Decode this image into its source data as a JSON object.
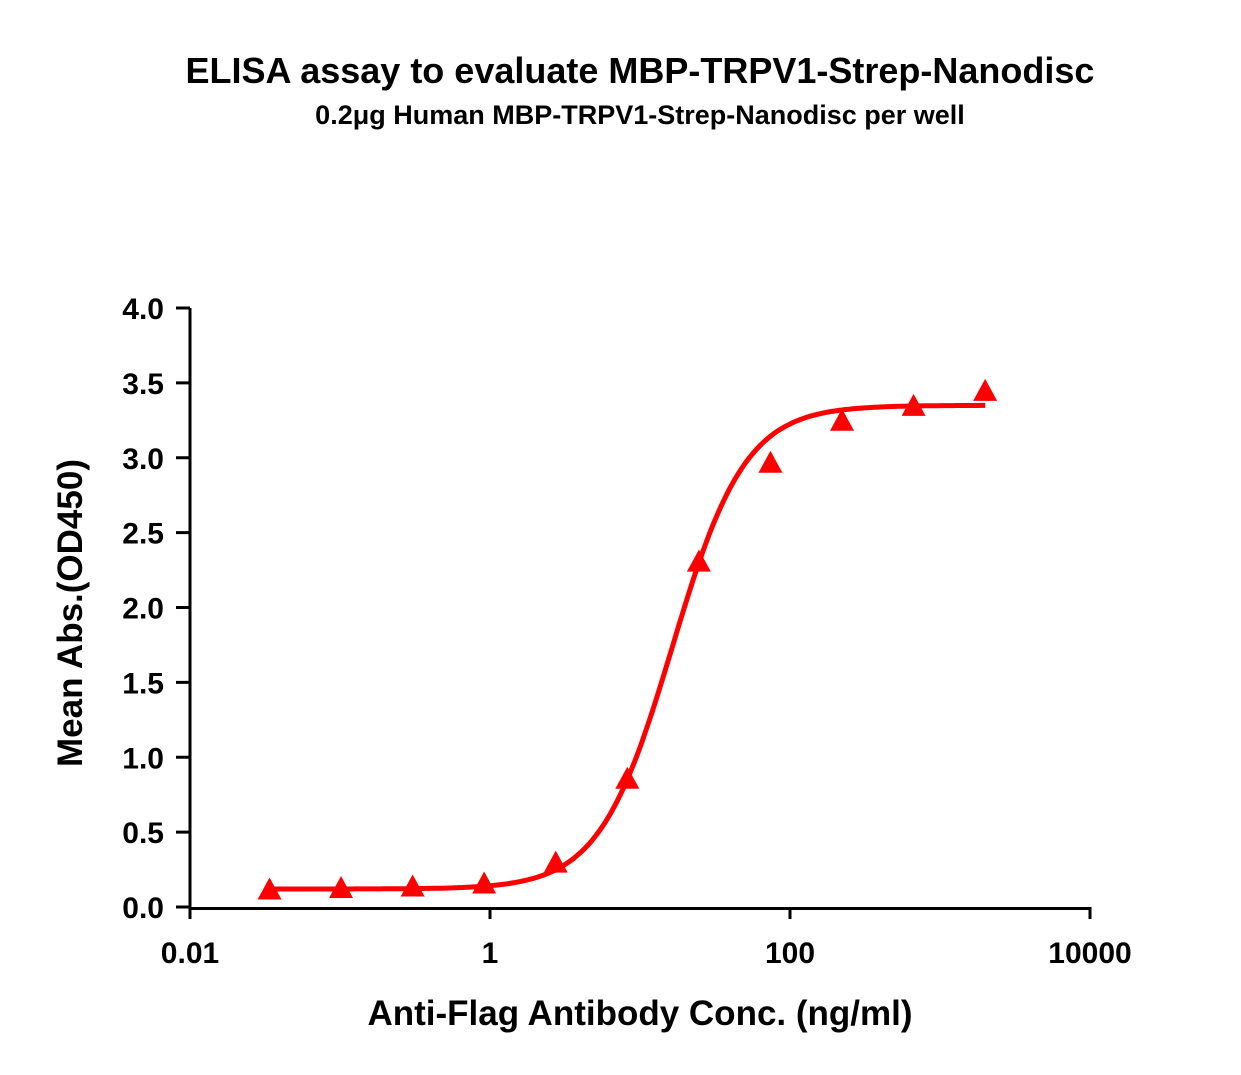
{
  "chart_data": {
    "type": "scatter",
    "title": "ELISA assay to evaluate MBP-TRPV1-Strep-Nanodisc",
    "subtitle": "0.2μg Human MBP-TRPV1-Strep-Nanodisc per well",
    "xlabel": "Anti-Flag Antibody Conc. (ng/ml)",
    "ylabel": "Mean Abs.(OD450)",
    "xscale": "log",
    "xlim": [
      0.01,
      10000
    ],
    "ylim": [
      0,
      4.0
    ],
    "xticks": [
      "0.01",
      "1",
      "100",
      "10000"
    ],
    "yticks": [
      "0.0",
      "0.5",
      "1.0",
      "1.5",
      "2.0",
      "2.5",
      "3.0",
      "3.5",
      "4.0"
    ],
    "grid": false,
    "marker": "triangle",
    "fit": "4-parameter logistic curve",
    "color": "#ff0000",
    "x": [
      0.0339,
      0.1016,
      0.305,
      0.914,
      2.743,
      8.23,
      24.69,
      74.07,
      222.2,
      666.7,
      2000
    ],
    "y": [
      0.11,
      0.12,
      0.13,
      0.15,
      0.29,
      0.85,
      2.3,
      2.96,
      3.24,
      3.34,
      3.44
    ]
  }
}
